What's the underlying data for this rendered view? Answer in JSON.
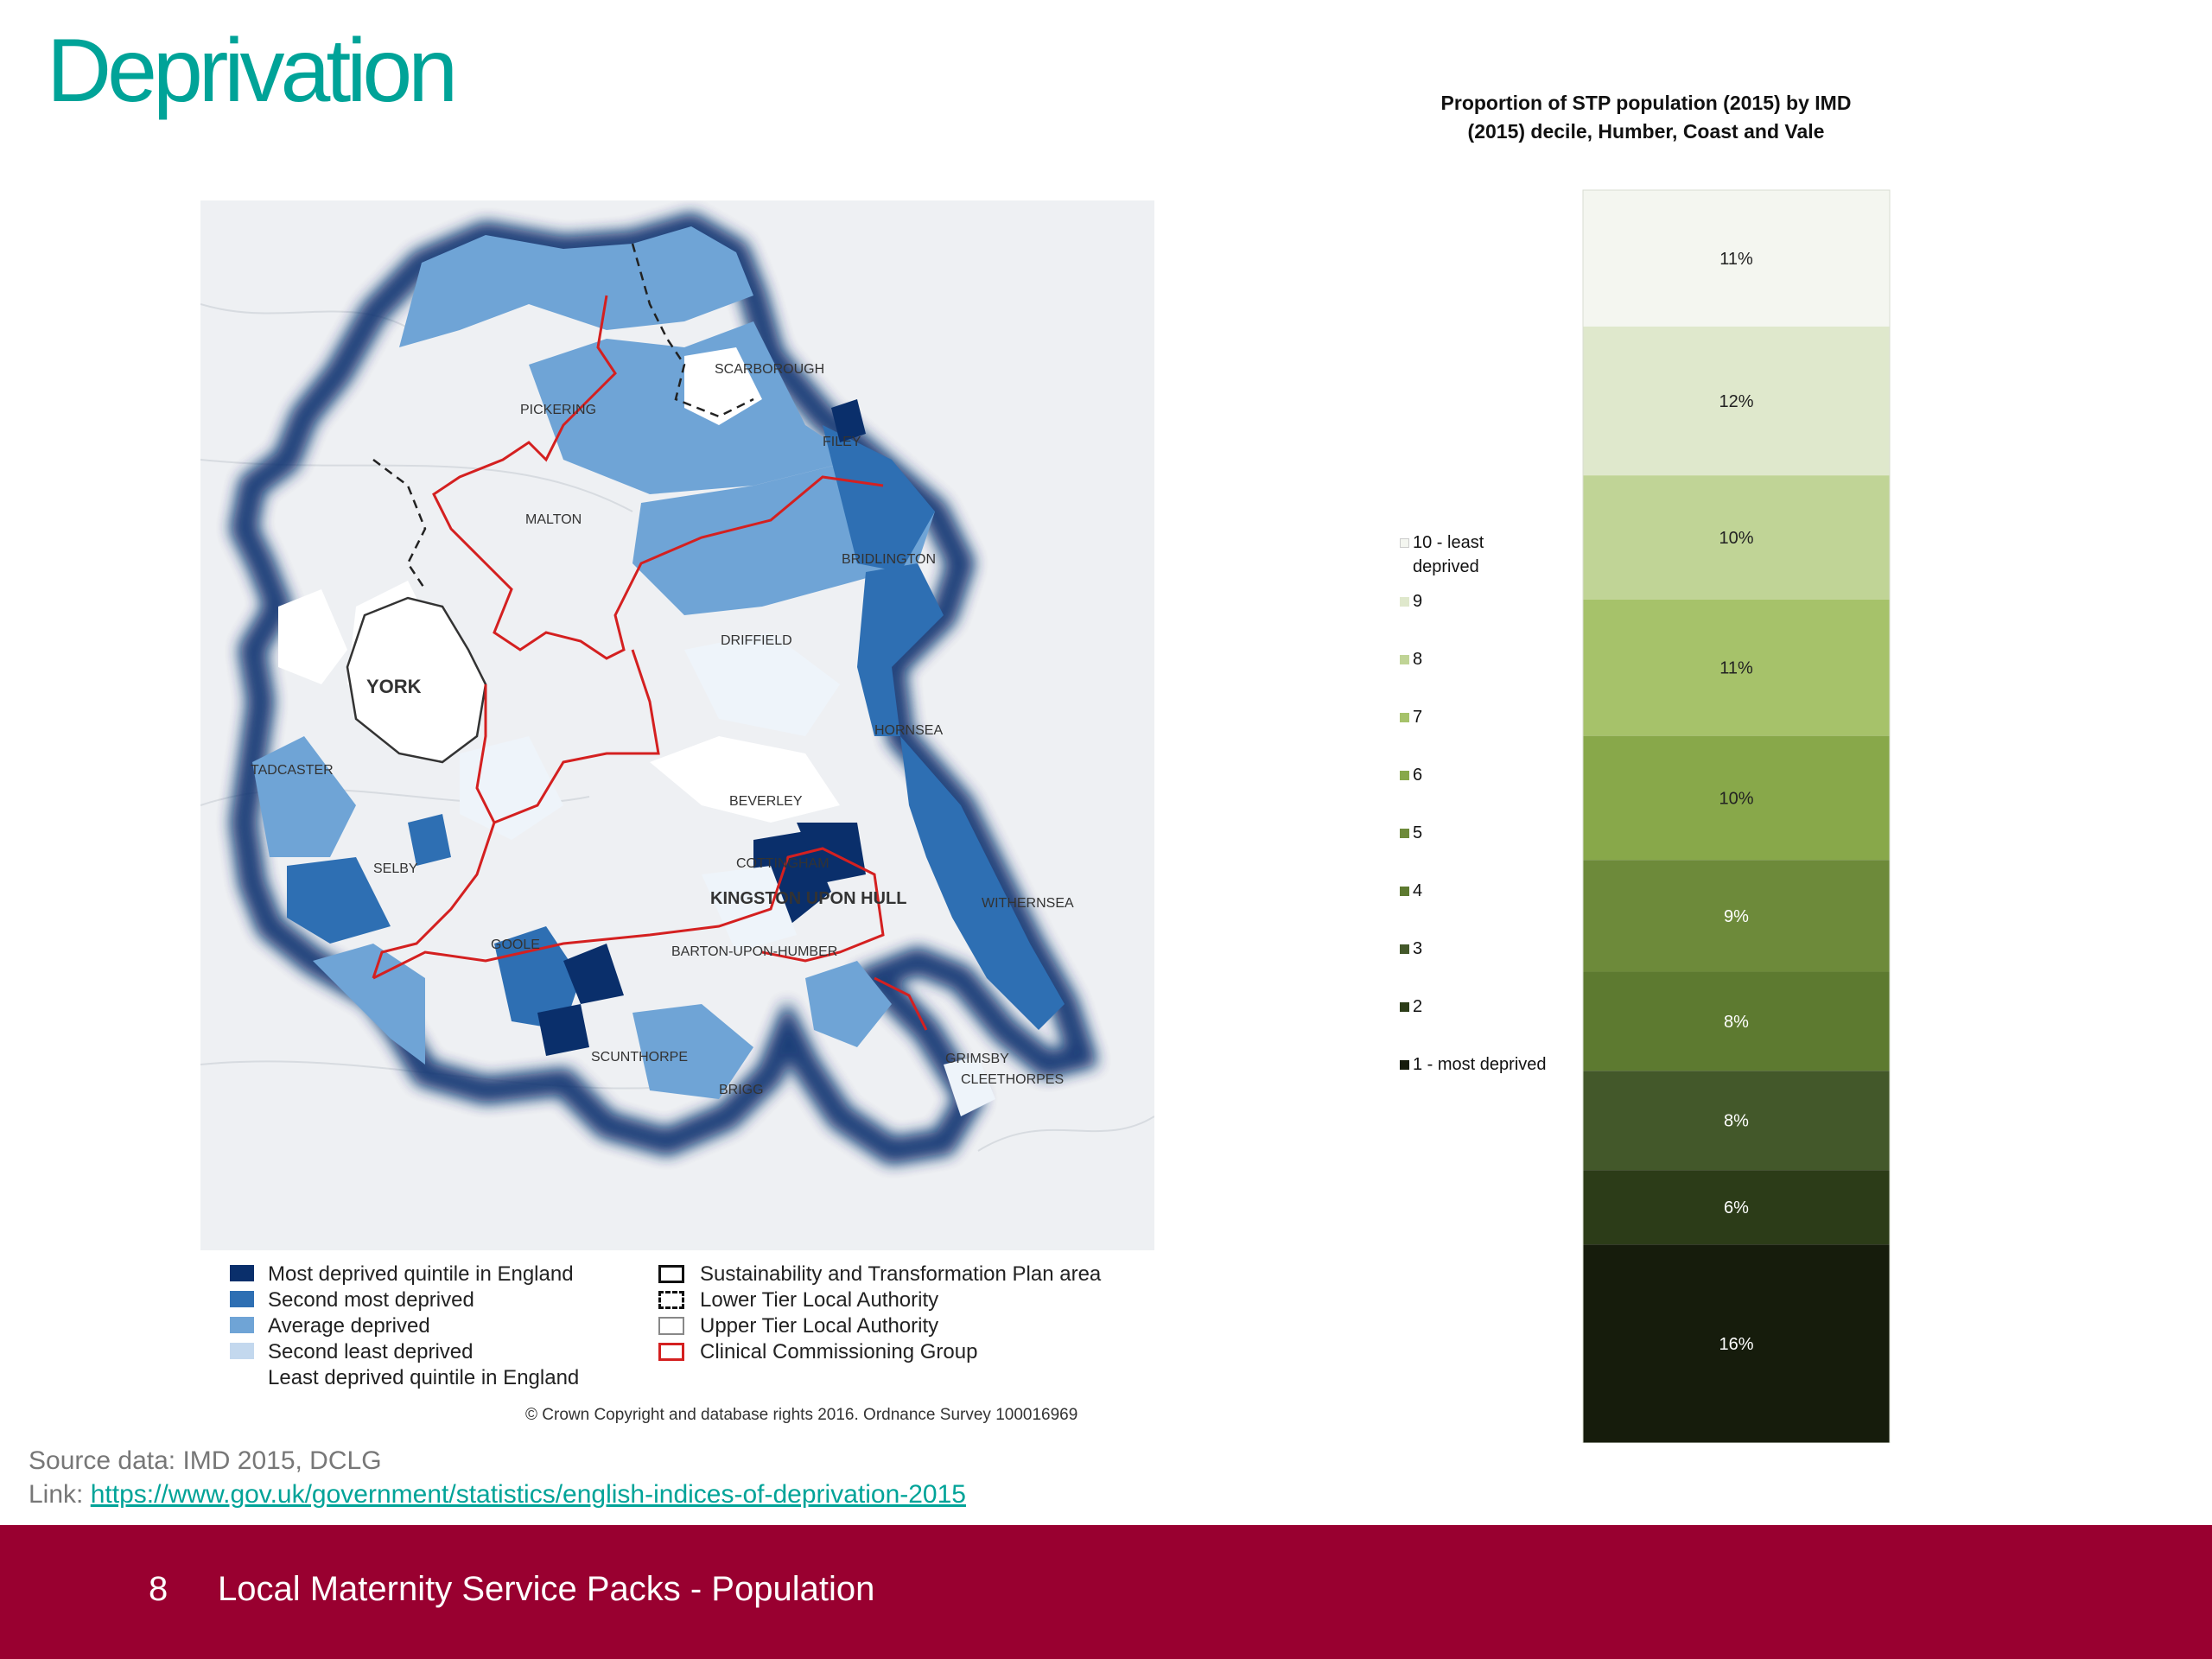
{
  "slide": {
    "title": "Deprivation",
    "source": "Source data: IMD 2015, DCLG",
    "link_prefix": "Link: ",
    "link": "https://www.gov.uk/government/statistics/english-indices-of-deprivation-2015",
    "footer_number": "8",
    "footer_text": "Local Maternity Service Packs - Population",
    "footer_color": "#990030",
    "accent_color": "#00a398"
  },
  "map": {
    "place_labels": [
      "SCARBOROUGH",
      "PICKERING",
      "FILEY",
      "MALTON",
      "BRIDLINGTON",
      "DRIFFIELD",
      "YORK",
      "HORNSEA",
      "TADCASTER",
      "BEVERLEY",
      "SELBY",
      "COTTINGHAM",
      "KINGSTON UPON HULL",
      "WITHERNSEA",
      "GOOLE",
      "BARTON-UPON-HUMBER",
      "SCUNTHORPE",
      "BRIGG",
      "GRIMSBY",
      "CLEETHORPES"
    ],
    "legend_quintiles": [
      {
        "label": "Most deprived quintile in England",
        "color": "#0a2f6b"
      },
      {
        "label": "Second most deprived",
        "color": "#2e6fb3"
      },
      {
        "label": "Average deprived",
        "color": "#6fa4d6"
      },
      {
        "label": "Second least deprived",
        "color": "#c3d8ee"
      },
      {
        "label": "Least deprived quintile in England",
        "color": "#ffffff"
      }
    ],
    "legend_boundaries": [
      {
        "label": "Sustainability and Transformation Plan area",
        "style": "stp"
      },
      {
        "label": "Lower Tier Local Authority",
        "style": "lower"
      },
      {
        "label": "Upper Tier Local Authority",
        "style": "upper"
      },
      {
        "label": "Clinical Commissioning Group",
        "style": "ccg"
      }
    ],
    "copyright": "© Crown Copyright and database rights 2016. Ordnance Survey 100016969"
  },
  "chart_data": {
    "type": "bar",
    "subtype": "100% stacked column",
    "title": "Proportion of STP population (2015) by IMD (2015) decile, Humber, Coast and Vale",
    "series": [
      {
        "name": "1 - most deprived",
        "value": 16,
        "label": "16%",
        "color": "#161c0c"
      },
      {
        "name": "2",
        "value": 6,
        "label": "6%",
        "color": "#2c3c18"
      },
      {
        "name": "3",
        "value": 8,
        "label": "8%",
        "color": "#43582a"
      },
      {
        "name": "4",
        "value": 8,
        "label": "8%",
        "color": "#5d7a30"
      },
      {
        "name": "5",
        "value": 9,
        "label": "9%",
        "color": "#6d8a3a"
      },
      {
        "name": "6",
        "value": 10,
        "label": "10%",
        "color": "#88a84a"
      },
      {
        "name": "7",
        "value": 11,
        "label": "11%",
        "color": "#a6c26a"
      },
      {
        "name": "8",
        "value": 10,
        "label": "10%",
        "color": "#c0d496"
      },
      {
        "name": "9",
        "value": 12,
        "label": "12%",
        "color": "#dfe8cc"
      },
      {
        "name": "10 - least deprived",
        "value": 11,
        "label": "11%",
        "color": "#f4f6f0"
      }
    ],
    "legend_position": "left",
    "label_dark_color": "#222222",
    "label_light_color": "#ffffff"
  }
}
